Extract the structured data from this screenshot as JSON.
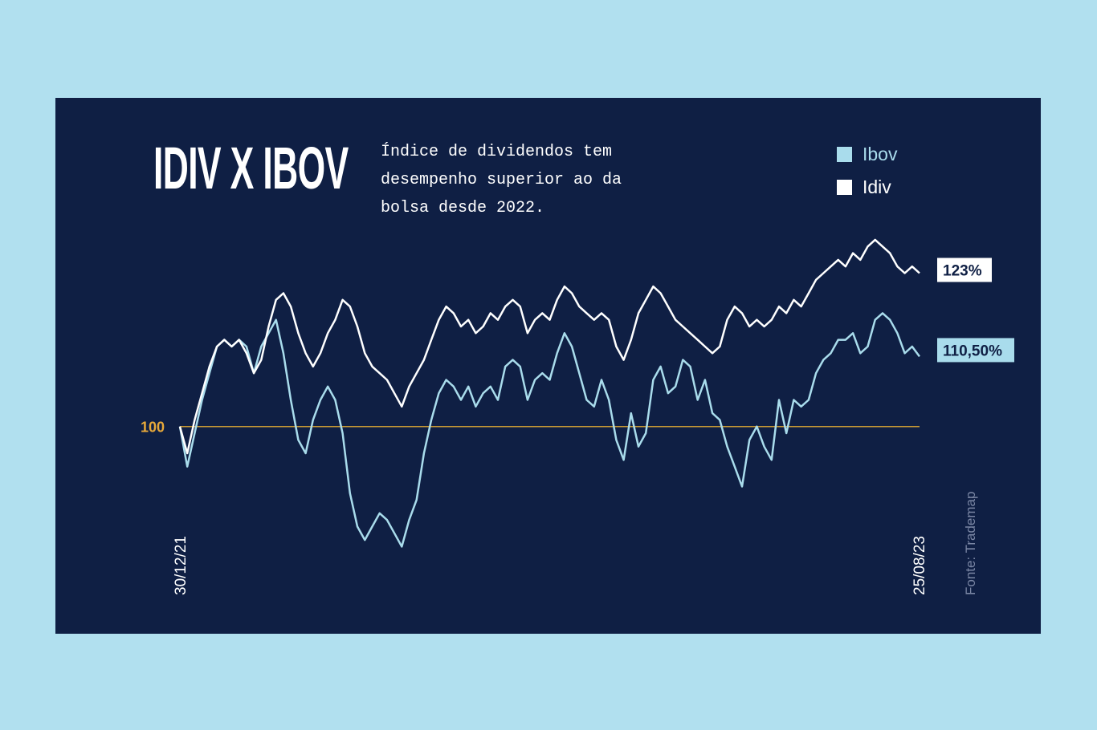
{
  "title": "IDIV X IBOV",
  "subtitle": "Índice de dividendos tem desempenho superior ao da bolsa desde 2022.",
  "source": "Fonte: Trademap",
  "colors": {
    "background": "#b1e0ef",
    "card": "#0f1f44",
    "ibov": "#a9dcec",
    "idiv": "#ffffff",
    "baseline": "#c89a35"
  },
  "legend": [
    {
      "label": "Ibov",
      "color": "#a9dcec"
    },
    {
      "label": "Idiv",
      "color": "#ffffff"
    }
  ],
  "chart_data": {
    "type": "line",
    "x_start_label": "30/12/21",
    "x_end_label": "25/08/23",
    "baseline": {
      "value": 100,
      "label": "100"
    },
    "ylim": [
      80,
      131
    ],
    "grid": false,
    "series": [
      {
        "name": "Ibov",
        "end_label": "110,50%",
        "values": [
          100,
          94,
          99,
          104,
          108,
          112,
          113,
          112,
          113,
          112,
          108,
          112,
          114,
          116,
          111,
          104,
          98,
          96,
          101,
          104,
          106,
          104,
          99,
          90,
          85,
          83,
          85,
          87,
          86,
          84,
          82,
          86,
          89,
          96,
          101,
          105,
          107,
          106,
          104,
          106,
          103,
          105,
          106,
          104,
          109,
          110,
          109,
          104,
          107,
          108,
          107,
          111,
          114,
          112,
          108,
          104,
          103,
          107,
          104,
          98,
          95,
          102,
          97,
          99,
          107,
          109,
          105,
          106,
          110,
          109,
          104,
          107,
          102,
          101,
          97,
          94,
          91,
          98,
          100,
          97,
          95,
          104,
          99,
          104,
          103,
          104,
          108,
          110,
          111,
          113,
          113,
          114,
          111,
          112,
          116,
          117,
          116,
          114,
          111,
          112,
          110.5
        ]
      },
      {
        "name": "Idiv",
        "end_label": "123%",
        "values": [
          100,
          96,
          101,
          105,
          109,
          112,
          113,
          112,
          113,
          111,
          108,
          110,
          115,
          119,
          120,
          118,
          114,
          111,
          109,
          111,
          114,
          116,
          119,
          118,
          115,
          111,
          109,
          108,
          107,
          105,
          103,
          106,
          108,
          110,
          113,
          116,
          118,
          117,
          115,
          116,
          114,
          115,
          117,
          116,
          118,
          119,
          118,
          114,
          116,
          117,
          116,
          119,
          121,
          120,
          118,
          117,
          116,
          117,
          116,
          112,
          110,
          113,
          117,
          119,
          121,
          120,
          118,
          116,
          115,
          114,
          113,
          112,
          111,
          112,
          116,
          118,
          117,
          115,
          116,
          115,
          116,
          118,
          117,
          119,
          118,
          120,
          122,
          123,
          124,
          125,
          124,
          126,
          125,
          127,
          128,
          127,
          126,
          124,
          123,
          124,
          123
        ]
      }
    ]
  }
}
